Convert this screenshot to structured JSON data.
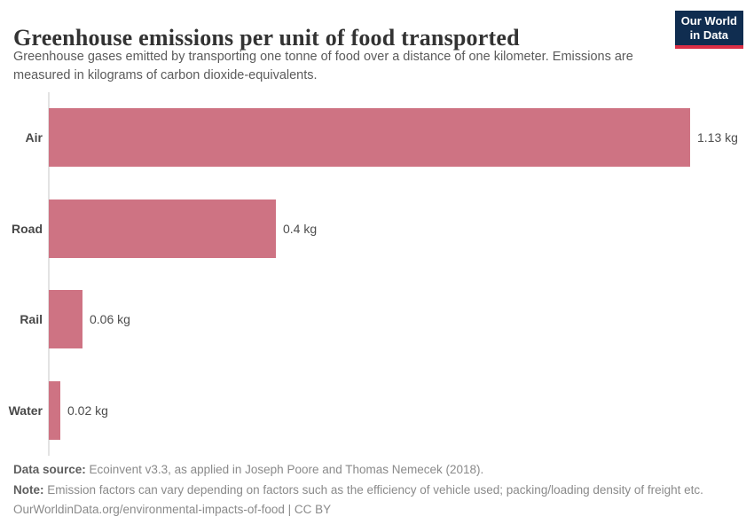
{
  "header": {
    "title": "Greenhouse emissions per unit of food transported",
    "subtitle": "Greenhouse gases emitted by transporting one tonne of food over a distance of one kilometer. Emissions are measured in kilograms of carbon dioxide-equivalents.",
    "logo": {
      "line1": "Our World",
      "line2": "in Data",
      "background_color": "#102d50",
      "stripe_color": "#dc2e45"
    }
  },
  "chart_data": {
    "type": "bar",
    "orientation": "horizontal",
    "title": "Greenhouse emissions per unit of food transported",
    "categories": [
      "Air",
      "Road",
      "Rail",
      "Water"
    ],
    "values": [
      1.13,
      0.4,
      0.06,
      0.02
    ],
    "value_labels": [
      "1.13 kg",
      "0.4 kg",
      "0.06 kg",
      "0.02 kg"
    ],
    "unit": "kg CO2-equivalents per tonne-kilometer",
    "xlim": [
      0,
      1.13
    ],
    "grid": false,
    "legend": "none",
    "bar_color": "#ce7383"
  },
  "footer": {
    "data_source_label": "Data source:",
    "data_source_text": "Ecoinvent v3.3, as applied in Joseph Poore and Thomas Nemecek (2018).",
    "note_label": "Note:",
    "note_text": "Emission factors can vary depending on factors such as the efficiency of vehicle used; packing/loading density of freight etc.",
    "license_text": "OurWorldinData.org/environmental-impacts-of-food | CC BY"
  }
}
